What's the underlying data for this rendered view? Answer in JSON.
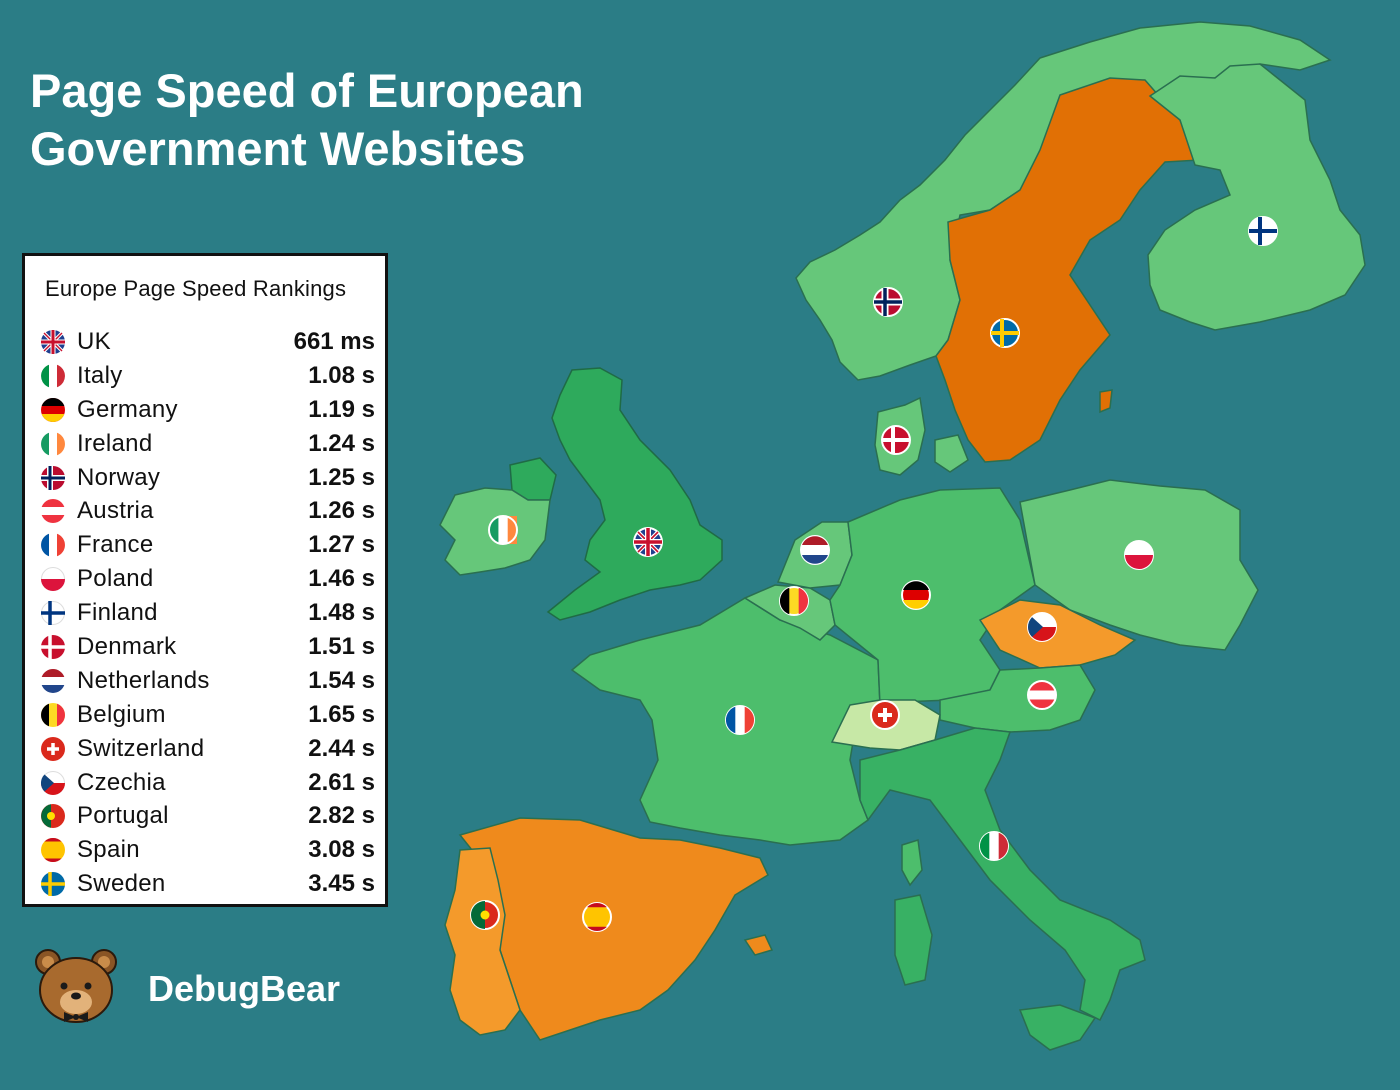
{
  "title_line1": "Page Speed of European",
  "title_line2": "Government Websites",
  "ranking": {
    "heading": "Europe Page Speed Rankings",
    "rows": [
      {
        "country": "UK",
        "time": "661 ms",
        "flag": "uk-flag-icon"
      },
      {
        "country": "Italy",
        "time": "1.08 s",
        "flag": "italy-flag-icon"
      },
      {
        "country": "Germany",
        "time": "1.19 s",
        "flag": "germany-flag-icon"
      },
      {
        "country": "Ireland",
        "time": "1.24 s",
        "flag": "ireland-flag-icon"
      },
      {
        "country": "Norway",
        "time": "1.25 s",
        "flag": "norway-flag-icon"
      },
      {
        "country": "Austria",
        "time": "1.26 s",
        "flag": "austria-flag-icon"
      },
      {
        "country": "France",
        "time": "1.27 s",
        "flag": "france-flag-icon"
      },
      {
        "country": "Poland",
        "time": "1.46 s",
        "flag": "poland-flag-icon"
      },
      {
        "country": "Finland",
        "time": "1.48 s",
        "flag": "finland-flag-icon"
      },
      {
        "country": "Denmark",
        "time": "1.51 s",
        "flag": "denmark-flag-icon"
      },
      {
        "country": "Netherlands",
        "time": "1.54 s",
        "flag": "netherlands-flag-icon"
      },
      {
        "country": "Belgium",
        "time": "1.65 s",
        "flag": "belgium-flag-icon"
      },
      {
        "country": "Switzerland",
        "time": "2.44 s",
        "flag": "switzerland-flag-icon"
      },
      {
        "country": "Czechia",
        "time": "2.61 s",
        "flag": "czechia-flag-icon"
      },
      {
        "country": "Portugal",
        "time": "2.82 s",
        "flag": "portugal-flag-icon"
      },
      {
        "country": "Spain",
        "time": "3.08 s",
        "flag": "spain-flag-icon"
      },
      {
        "country": "Sweden",
        "time": "3.45 s",
        "flag": "sweden-flag-icon"
      }
    ]
  },
  "brand": {
    "name": "DebugBear",
    "logo": "bear-logo-icon"
  },
  "colors": {
    "sea": "#2b7d86",
    "fast_dark": "#2eaa5c",
    "fast": "#4dbe6c",
    "medium": "#66c77a",
    "slow_light": "#c7e8a6",
    "slow": "#f49a2b",
    "slower": "#ef8a1c",
    "slowest": "#e17005"
  }
}
